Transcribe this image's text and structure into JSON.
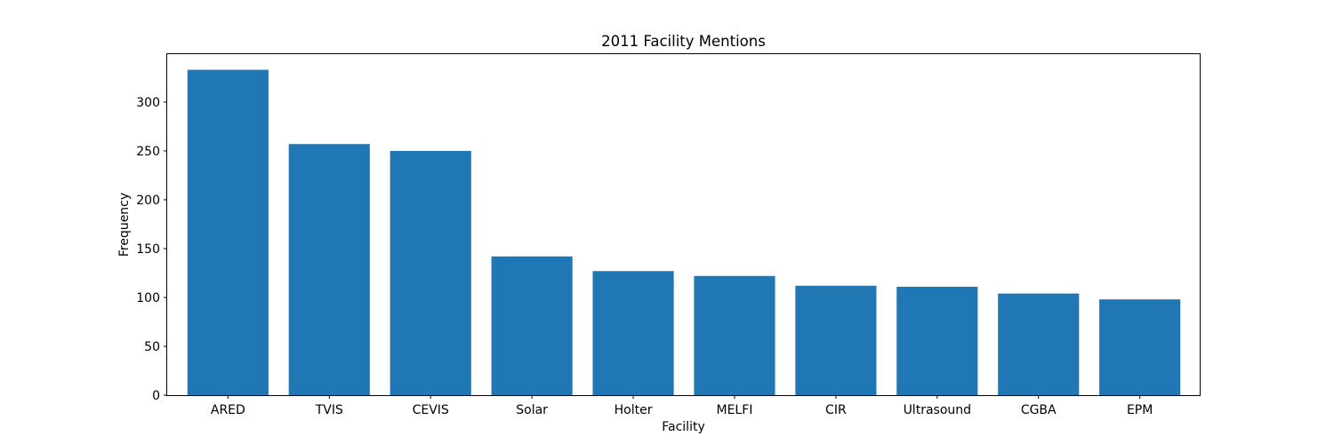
{
  "chart_data": {
    "type": "bar",
    "title": "2011 Facility Mentions",
    "xlabel": "Facility",
    "ylabel": "Frequency",
    "categories": [
      "ARED",
      "TVIS",
      "CEVIS",
      "Solar",
      "Holter",
      "MELFI",
      "CIR",
      "Ultrasound",
      "CGBA",
      "EPM"
    ],
    "values": [
      333,
      257,
      250,
      142,
      127,
      122,
      112,
      111,
      104,
      98
    ],
    "ylim": [
      0,
      349
    ],
    "yticks": [
      0,
      50,
      100,
      150,
      200,
      250,
      300
    ],
    "grid": false,
    "bar_color": "#1f77b4"
  }
}
